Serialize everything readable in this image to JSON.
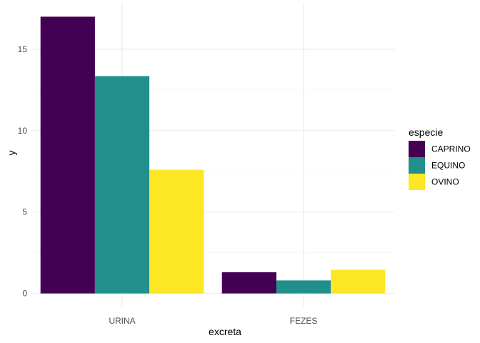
{
  "chart_data": {
    "type": "bar",
    "xlabel": "excreta",
    "ylabel": "y",
    "categories": [
      "URINA",
      "FEZES"
    ],
    "series": [
      {
        "name": "CAPRINO",
        "values": [
          17.0,
          1.3
        ],
        "color": "#440154"
      },
      {
        "name": "EQUINO",
        "values": [
          13.35,
          0.8
        ],
        "color": "#21908C"
      },
      {
        "name": "OVINO",
        "values": [
          7.6,
          1.45
        ],
        "color": "#FDE725"
      }
    ],
    "yticks": [
      0,
      5,
      10,
      15
    ],
    "ylim": [
      -0.85,
      17.85
    ],
    "grid": true,
    "legend": {
      "title": "especie",
      "placement": "right"
    }
  }
}
